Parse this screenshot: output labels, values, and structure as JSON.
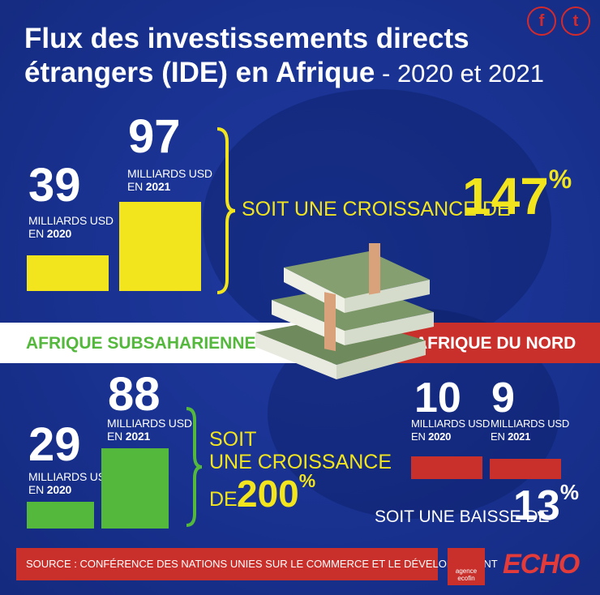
{
  "header": {
    "title_line1": "Flux des investissements directs",
    "title_line2": "étrangers (IDE) en Afrique",
    "title_years": " - 2020 et 2021"
  },
  "social": {
    "facebook_glyph": "f",
    "twitter_glyph": "t"
  },
  "colors": {
    "background": "#1a3393",
    "yellow": "#f2e51e",
    "green": "#53b83b",
    "red": "#c9302c",
    "white": "#ffffff"
  },
  "chart_data": [
    {
      "type": "bar",
      "region": "Afrique",
      "categories": [
        "2020",
        "2021"
      ],
      "values": [
        39,
        97
      ],
      "unit_label": "MILLIARDS USD",
      "unit_prefix": "EN",
      "change_text": "SOIT UNE CROISSANCE DE",
      "change_value": "147",
      "change_unit": "%",
      "color": "#f2e51e"
    },
    {
      "type": "bar",
      "region": "AFRIQUE SUBSAHARIENNE",
      "categories": [
        "2020",
        "2021"
      ],
      "values": [
        29,
        88
      ],
      "unit_label": "MILLIARDS USD",
      "unit_prefix": "EN",
      "change_text_lines": [
        "SOIT",
        "UNE CROISSANCE",
        "DE"
      ],
      "change_value": "200",
      "change_unit": "%",
      "color": "#53b83b"
    },
    {
      "type": "bar",
      "region": "AFRIQUE DU NORD",
      "categories": [
        "2020",
        "2021"
      ],
      "values": [
        10,
        9
      ],
      "unit_label": "MILLIARDS USD",
      "unit_prefix": "EN",
      "change_text": "SOIT UNE BAISSE DE",
      "change_value": "13",
      "change_unit": "%",
      "color": "#c9302c"
    }
  ],
  "footer": {
    "source": "SOURCE : CONFÉRENCE DES NATIONS UNIES SUR LE COMMERCE ET LE DÉVELOPPEMENT",
    "logo_ecofin": "agence ecofin",
    "logo_echo": "ECHO"
  }
}
